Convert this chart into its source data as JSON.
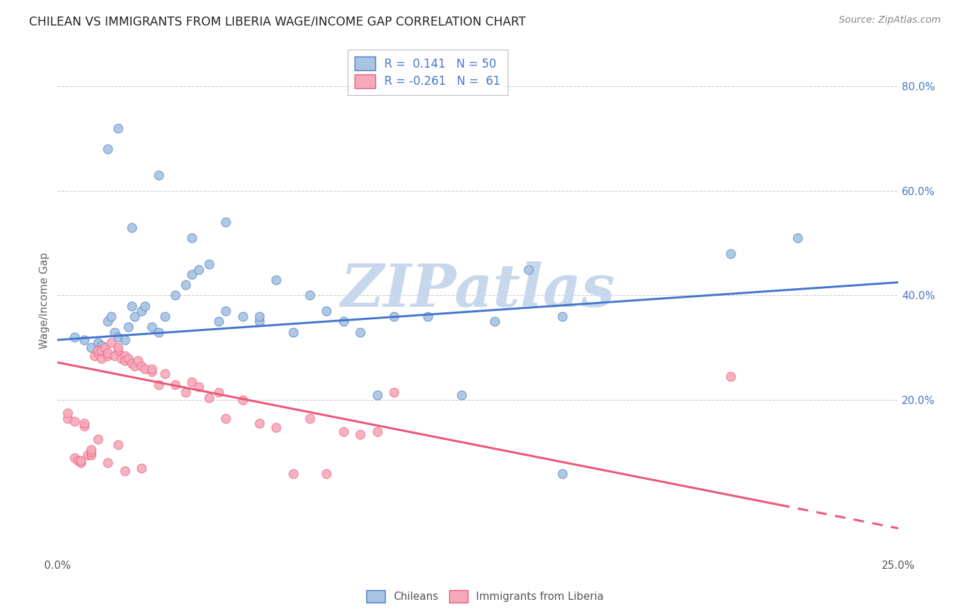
{
  "title": "CHILEAN VS IMMIGRANTS FROM LIBERIA WAGE/INCOME GAP CORRELATION CHART",
  "source": "Source: ZipAtlas.com",
  "ylabel": "Wage/Income Gap",
  "xlim": [
    0.0,
    0.25
  ],
  "ylim": [
    -0.1,
    0.88
  ],
  "blue_color": "#A8C4E0",
  "pink_color": "#F4AABB",
  "line_blue": "#4477CC",
  "line_pink": "#EE5577",
  "watermark_text": "ZIPatlas",
  "watermark_color": "#C8D8EC",
  "legend_r1": "R =  0.141",
  "legend_n1": "N = 50",
  "legend_r2": "R = -0.261",
  "legend_n2": "N =  61",
  "blue_scatter_x": [
    0.005,
    0.008,
    0.01,
    0.012,
    0.013,
    0.015,
    0.016,
    0.017,
    0.018,
    0.02,
    0.021,
    0.022,
    0.023,
    0.025,
    0.026,
    0.028,
    0.03,
    0.032,
    0.035,
    0.038,
    0.04,
    0.042,
    0.045,
    0.048,
    0.05,
    0.055,
    0.06,
    0.065,
    0.07,
    0.075,
    0.08,
    0.085,
    0.09,
    0.095,
    0.1,
    0.11,
    0.12,
    0.13,
    0.14,
    0.15,
    0.015,
    0.018,
    0.022,
    0.03,
    0.04,
    0.05,
    0.06,
    0.15,
    0.2,
    0.22
  ],
  "blue_scatter_y": [
    0.32,
    0.315,
    0.3,
    0.31,
    0.305,
    0.35,
    0.36,
    0.33,
    0.32,
    0.315,
    0.34,
    0.38,
    0.36,
    0.37,
    0.38,
    0.34,
    0.33,
    0.36,
    0.4,
    0.42,
    0.44,
    0.45,
    0.46,
    0.35,
    0.37,
    0.36,
    0.35,
    0.43,
    0.33,
    0.4,
    0.37,
    0.35,
    0.33,
    0.21,
    0.36,
    0.36,
    0.21,
    0.35,
    0.45,
    0.36,
    0.68,
    0.72,
    0.53,
    0.63,
    0.51,
    0.54,
    0.36,
    0.06,
    0.48,
    0.51
  ],
  "pink_scatter_x": [
    0.003,
    0.005,
    0.006,
    0.007,
    0.008,
    0.008,
    0.009,
    0.01,
    0.01,
    0.011,
    0.012,
    0.012,
    0.013,
    0.013,
    0.014,
    0.015,
    0.015,
    0.016,
    0.017,
    0.018,
    0.018,
    0.019,
    0.02,
    0.02,
    0.021,
    0.022,
    0.023,
    0.024,
    0.025,
    0.026,
    0.028,
    0.028,
    0.03,
    0.032,
    0.035,
    0.038,
    0.04,
    0.042,
    0.045,
    0.048,
    0.05,
    0.055,
    0.06,
    0.065,
    0.07,
    0.075,
    0.08,
    0.085,
    0.09,
    0.095,
    0.003,
    0.005,
    0.007,
    0.01,
    0.012,
    0.015,
    0.018,
    0.02,
    0.025,
    0.2,
    0.1
  ],
  "pink_scatter_y": [
    0.165,
    0.09,
    0.085,
    0.08,
    0.15,
    0.155,
    0.095,
    0.095,
    0.1,
    0.285,
    0.29,
    0.295,
    0.28,
    0.295,
    0.3,
    0.285,
    0.29,
    0.31,
    0.285,
    0.295,
    0.3,
    0.28,
    0.285,
    0.275,
    0.28,
    0.27,
    0.265,
    0.275,
    0.265,
    0.26,
    0.255,
    0.26,
    0.23,
    0.25,
    0.23,
    0.215,
    0.235,
    0.225,
    0.205,
    0.215,
    0.165,
    0.2,
    0.155,
    0.148,
    0.06,
    0.165,
    0.06,
    0.14,
    0.135,
    0.14,
    0.175,
    0.16,
    0.085,
    0.105,
    0.125,
    0.08,
    0.115,
    0.065,
    0.07,
    0.245,
    0.215
  ],
  "blue_line_x0": 0.0,
  "blue_line_x1": 0.25,
  "blue_line_y0": 0.315,
  "blue_line_y1": 0.425,
  "pink_line_x0": 0.0,
  "pink_line_x1": 0.25,
  "pink_line_y0": 0.272,
  "pink_line_y1": -0.045
}
